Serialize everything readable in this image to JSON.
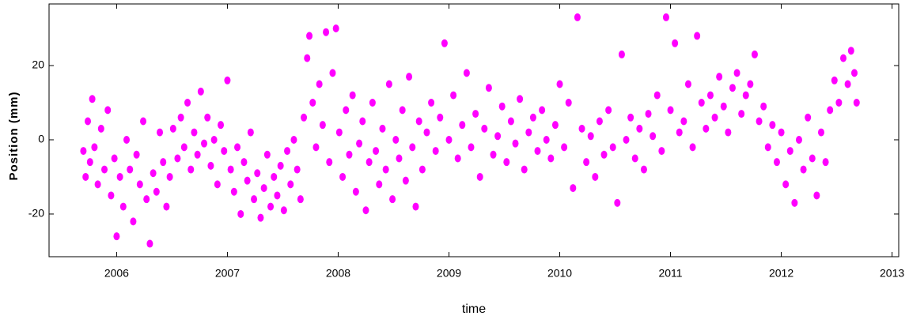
{
  "chart_data": {
    "type": "scatter",
    "xlabel": "time",
    "ylabel": "Position (mm)",
    "color": "#ff00ff",
    "grid": false,
    "xlim": [
      2005.39,
      2013.06
    ],
    "ylim": [
      -31.5,
      36.6
    ],
    "xticks": [
      2006,
      2007,
      2008,
      2009,
      2010,
      2011,
      2012,
      2013
    ],
    "yticks": [
      -20,
      0,
      20
    ],
    "x": [
      2005.7,
      2005.72,
      2005.74,
      2005.76,
      2005.78,
      2005.8,
      2005.83,
      2005.86,
      2005.89,
      2005.92,
      2005.95,
      2005.98,
      2006.0,
      2006.03,
      2006.06,
      2006.09,
      2006.12,
      2006.15,
      2006.18,
      2006.21,
      2006.24,
      2006.27,
      2006.3,
      2006.33,
      2006.36,
      2006.39,
      2006.42,
      2006.45,
      2006.48,
      2006.51,
      2006.55,
      2006.58,
      2006.61,
      2006.64,
      2006.67,
      2006.7,
      2006.73,
      2006.76,
      2006.79,
      2006.82,
      2006.85,
      2006.88,
      2006.91,
      2006.94,
      2006.97,
      2007.0,
      2007.03,
      2007.06,
      2007.09,
      2007.12,
      2007.15,
      2007.18,
      2007.21,
      2007.24,
      2007.27,
      2007.3,
      2007.33,
      2007.36,
      2007.39,
      2007.42,
      2007.45,
      2007.48,
      2007.51,
      2007.54,
      2007.57,
      2007.6,
      2007.63,
      2007.66,
      2007.69,
      2007.72,
      2007.74,
      2007.77,
      2007.8,
      2007.83,
      2007.86,
      2007.89,
      2007.92,
      2007.95,
      2007.98,
      2008.01,
      2008.04,
      2008.07,
      2008.1,
      2008.13,
      2008.16,
      2008.19,
      2008.22,
      2008.25,
      2008.28,
      2008.31,
      2008.34,
      2008.37,
      2008.4,
      2008.43,
      2008.46,
      2008.49,
      2008.52,
      2008.55,
      2008.58,
      2008.61,
      2008.64,
      2008.67,
      2008.7,
      2008.73,
      2008.76,
      2008.8,
      2008.84,
      2008.88,
      2008.92,
      2008.96,
      2009.0,
      2009.04,
      2009.08,
      2009.12,
      2009.16,
      2009.2,
      2009.24,
      2009.28,
      2009.32,
      2009.36,
      2009.4,
      2009.44,
      2009.48,
      2009.52,
      2009.56,
      2009.6,
      2009.64,
      2009.68,
      2009.72,
      2009.76,
      2009.8,
      2009.84,
      2009.88,
      2009.92,
      2009.96,
      2010.0,
      2010.04,
      2010.08,
      2010.12,
      2010.16,
      2010.2,
      2010.24,
      2010.28,
      2010.32,
      2010.36,
      2010.4,
      2010.44,
      2010.48,
      2010.52,
      2010.56,
      2010.6,
      2010.64,
      2010.68,
      2010.72,
      2010.76,
      2010.8,
      2010.84,
      2010.88,
      2010.92,
      2010.96,
      2011.0,
      2011.04,
      2011.08,
      2011.12,
      2011.16,
      2011.2,
      2011.24,
      2011.28,
      2011.32,
      2011.36,
      2011.4,
      2011.44,
      2011.48,
      2011.52,
      2011.56,
      2011.6,
      2011.64,
      2011.68,
      2011.72,
      2011.76,
      2011.8,
      2011.84,
      2011.88,
      2011.92,
      2011.96,
      2012.0,
      2012.04,
      2012.08,
      2012.12,
      2012.16,
      2012.2,
      2012.24,
      2012.28,
      2012.32,
      2012.36,
      2012.4,
      2012.44,
      2012.48,
      2012.52,
      2012.56,
      2012.6,
      2012.63,
      2012.66,
      2012.68
    ],
    "values": [
      -3,
      -10,
      5,
      -6,
      11,
      -2,
      -12,
      3,
      -8,
      8,
      -15,
      -5,
      -26,
      -10,
      -18,
      0,
      -8,
      -22,
      -4,
      -12,
      5,
      -16,
      -28,
      -9,
      -14,
      2,
      -6,
      -18,
      -10,
      3,
      -5,
      6,
      -2,
      10,
      -8,
      2,
      -4,
      13,
      -1,
      6,
      -7,
      0,
      -12,
      4,
      -3,
      16,
      -8,
      -14,
      -2,
      -20,
      -6,
      -11,
      2,
      -16,
      -9,
      -21,
      -13,
      -4,
      -18,
      -10,
      -15,
      -7,
      -19,
      -3,
      -12,
      0,
      -8,
      -16,
      6,
      22,
      28,
      10,
      -2,
      15,
      4,
      29,
      -6,
      18,
      30,
      2,
      -10,
      8,
      -4,
      12,
      -14,
      -1,
      5,
      -19,
      -6,
      10,
      -3,
      -12,
      3,
      -8,
      15,
      -16,
      0,
      -5,
      8,
      -11,
      17,
      -2,
      -18,
      5,
      -8,
      2,
      10,
      -3,
      6,
      26,
      0,
      12,
      -5,
      4,
      18,
      -2,
      7,
      -10,
      3,
      14,
      -4,
      1,
      9,
      -6,
      5,
      -1,
      11,
      -8,
      2,
      6,
      -3,
      8,
      0,
      -5,
      4,
      15,
      -2,
      10,
      -13,
      33,
      3,
      -6,
      1,
      -10,
      5,
      -4,
      8,
      -2,
      -17,
      23,
      0,
      6,
      -5,
      3,
      -8,
      7,
      1,
      12,
      -3,
      33,
      8,
      26,
      2,
      5,
      15,
      -2,
      28,
      10,
      3,
      12,
      6,
      17,
      9,
      2,
      14,
      18,
      7,
      12,
      15,
      23,
      5,
      9,
      -2,
      4,
      -6,
      2,
      -12,
      -3,
      -17,
      0,
      -8,
      6,
      -5,
      -15,
      2,
      -6,
      8,
      16,
      10,
      22,
      15,
      24,
      18,
      10
    ]
  }
}
